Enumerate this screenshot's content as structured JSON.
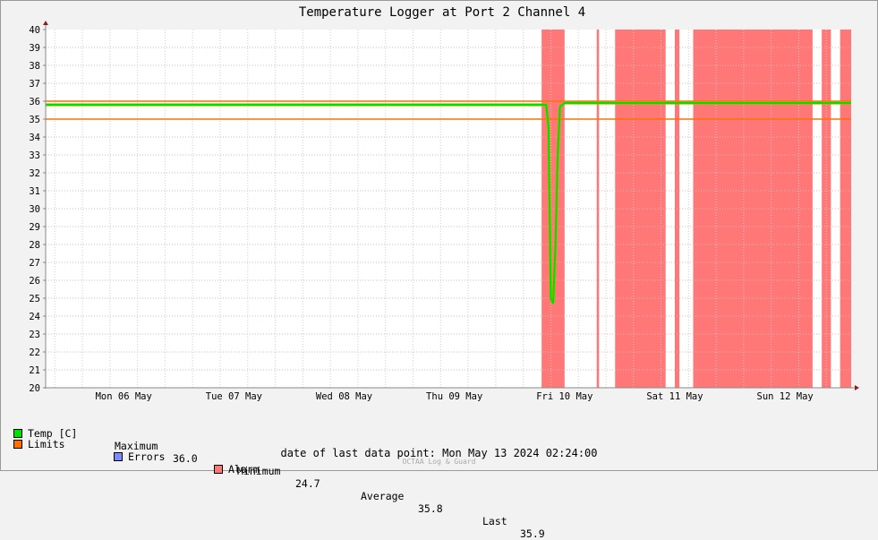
{
  "chart_data": {
    "type": "area",
    "title": "Temperature Logger at Port 2 Channel 4",
    "y_ticks": [
      "20",
      "21",
      "22",
      "23",
      "24",
      "25",
      "26",
      "27",
      "28",
      "29",
      "30",
      "31",
      "32",
      "33",
      "34",
      "35",
      "36",
      "37",
      "38",
      "39",
      "40"
    ],
    "ylim": [
      20,
      40
    ],
    "x_ticks": [
      "Mon 06 May",
      "Tue 07 May",
      "Wed 08 May",
      "Thu 09 May",
      "Fri 10 May",
      "Sat 11 May",
      "Sun 12 May"
    ],
    "xlim": [
      "2024-05-05 19:00",
      "2024-05-13 02:24"
    ],
    "grid": true,
    "limits": {
      "lower": 35.0,
      "upper": 36.0
    },
    "series": [
      {
        "name": "Temp [C]",
        "x": [
          "2024-05-05 19:00",
          "2024-05-06 06:00",
          "2024-05-06 18:00",
          "2024-05-07 06:00",
          "2024-05-07 18:00",
          "2024-05-08 06:00",
          "2024-05-08 18:00",
          "2024-05-09 06:00",
          "2024-05-09 18:00",
          "2024-05-10 06:00",
          "2024-05-10 08:00",
          "2024-05-10 08:30",
          "2024-05-10 09:00",
          "2024-05-10 09:30",
          "2024-05-10 10:00",
          "2024-05-10 10:30",
          "2024-05-10 11:00",
          "2024-05-10 12:00",
          "2024-05-10 14:00",
          "2024-05-10 18:00",
          "2024-05-11 06:00",
          "2024-05-11 18:00",
          "2024-05-12 06:00",
          "2024-05-12 18:00",
          "2024-05-13 02:24"
        ],
        "y": [
          35.8,
          35.8,
          35.8,
          35.8,
          35.8,
          35.8,
          35.8,
          35.8,
          35.8,
          35.8,
          35.8,
          34.5,
          25.0,
          24.7,
          28.0,
          33.0,
          35.7,
          35.9,
          35.9,
          35.9,
          35.9,
          35.9,
          35.9,
          35.9,
          35.9
        ]
      },
      {
        "name": "Alarm",
        "intervals": [
          [
            "2024-05-10 07:00",
            "2024-05-10 12:00"
          ],
          [
            "2024-05-10 19:00",
            "2024-05-10 19:30"
          ],
          [
            "2024-05-10 23:00",
            "2024-05-11 10:00"
          ],
          [
            "2024-05-11 12:00",
            "2024-05-11 13:00"
          ],
          [
            "2024-05-11 16:00",
            "2024-05-12 18:00"
          ],
          [
            "2024-05-12 20:00",
            "2024-05-12 22:00"
          ],
          [
            "2024-05-13 00:00",
            "2024-05-13 02:24"
          ]
        ]
      }
    ]
  },
  "legend": {
    "temp": {
      "label": "Temp [C]",
      "color": "#00e000"
    },
    "limits": {
      "label": "Limits",
      "color": "#ff7000"
    },
    "errors": {
      "label": "Errors",
      "color": "#7b8cff"
    },
    "alarm": {
      "label": "Alarm",
      "color": "#ff7777"
    },
    "stats": {
      "max_label": "Maximum",
      "max_value": "36.0",
      "min_label": "Minimum",
      "min_value": "24.7",
      "avg_label": "Average",
      "avg_value": "35.8",
      "last_label": "Last",
      "last_value": "35.9"
    }
  },
  "footer": {
    "last_date": "date of last data point:  Mon May 13 2024 02:24:00",
    "watermark": "OCTAA Log & Guard"
  }
}
